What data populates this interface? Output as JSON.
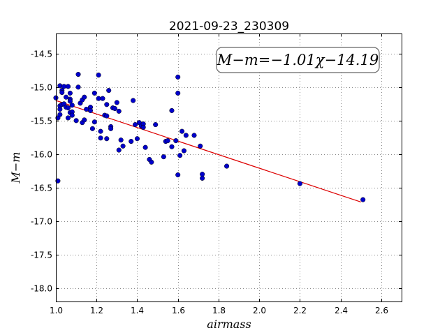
{
  "chart_data": {
    "type": "scatter",
    "title": "2021-09-23_230309",
    "xlabel": "airmass",
    "ylabel": "M−m",
    "xlim": [
      1.0,
      2.7
    ],
    "ylim": [
      -18.2,
      -14.2
    ],
    "xticks": [
      "1.0",
      "1.2",
      "1.4",
      "1.6",
      "1.8",
      "2.0",
      "2.2",
      "2.4",
      "2.6"
    ],
    "yticks": [
      "-14.5",
      "-15.0",
      "-15.5",
      "-16.0",
      "-16.5",
      "-17.0",
      "-17.5",
      "-18.0"
    ],
    "grid": true,
    "annotation": "M−m=−1.01χ−14.19",
    "point_color": "#0000cc",
    "line_color": "#dd0000",
    "fit": {
      "slope": -1.01,
      "intercept": -14.19,
      "x_range": [
        1.0,
        2.5
      ]
    },
    "points": [
      [
        1.0,
        -15.16
      ],
      [
        1.01,
        -16.4
      ],
      [
        1.01,
        -15.46
      ],
      [
        1.02,
        -14.98
      ],
      [
        1.02,
        -15.33
      ],
      [
        1.02,
        -15.28
      ],
      [
        1.02,
        -15.41
      ],
      [
        1.03,
        -15.05
      ],
      [
        1.03,
        -15.08
      ],
      [
        1.03,
        -15.26
      ],
      [
        1.04,
        -14.99
      ],
      [
        1.04,
        -15.25
      ],
      [
        1.05,
        -15.15
      ],
      [
        1.05,
        -15.3
      ],
      [
        1.06,
        -14.99
      ],
      [
        1.06,
        -15.31
      ],
      [
        1.06,
        -15.46
      ],
      [
        1.07,
        -15.09
      ],
      [
        1.07,
        -15.18
      ],
      [
        1.07,
        -15.21
      ],
      [
        1.07,
        -15.38
      ],
      [
        1.08,
        -15.27
      ],
      [
        1.08,
        -15.37
      ],
      [
        1.08,
        -15.42
      ],
      [
        1.1,
        -15.5
      ],
      [
        1.11,
        -14.81
      ],
      [
        1.11,
        -15.0
      ],
      [
        1.12,
        -15.24
      ],
      [
        1.13,
        -15.19
      ],
      [
        1.13,
        -15.53
      ],
      [
        1.14,
        -15.15
      ],
      [
        1.14,
        -15.49
      ],
      [
        1.15,
        -15.33
      ],
      [
        1.17,
        -15.3
      ],
      [
        1.17,
        -15.35
      ],
      [
        1.18,
        -15.62
      ],
      [
        1.19,
        -15.09
      ],
      [
        1.19,
        -15.52
      ],
      [
        1.21,
        -14.82
      ],
      [
        1.21,
        -15.17
      ],
      [
        1.22,
        -15.66
      ],
      [
        1.22,
        -15.76
      ],
      [
        1.23,
        -15.17
      ],
      [
        1.24,
        -15.42
      ],
      [
        1.25,
        -15.43
      ],
      [
        1.25,
        -15.26
      ],
      [
        1.25,
        -15.77
      ],
      [
        1.26,
        -15.05
      ],
      [
        1.27,
        -15.59
      ],
      [
        1.27,
        -15.62
      ],
      [
        1.28,
        -15.31
      ],
      [
        1.29,
        -15.32
      ],
      [
        1.3,
        -15.23
      ],
      [
        1.31,
        -15.36
      ],
      [
        1.31,
        -15.94
      ],
      [
        1.32,
        -15.79
      ],
      [
        1.33,
        -15.88
      ],
      [
        1.37,
        -15.81
      ],
      [
        1.38,
        -15.2
      ],
      [
        1.39,
        -15.56
      ],
      [
        1.4,
        -15.77
      ],
      [
        1.41,
        -15.53
      ],
      [
        1.42,
        -15.58
      ],
      [
        1.43,
        -15.55
      ],
      [
        1.43,
        -15.6
      ],
      [
        1.44,
        -15.9
      ],
      [
        1.46,
        -16.08
      ],
      [
        1.47,
        -16.12
      ],
      [
        1.49,
        -15.56
      ],
      [
        1.53,
        -16.04
      ],
      [
        1.54,
        -15.81
      ],
      [
        1.55,
        -15.8
      ],
      [
        1.57,
        -15.35
      ],
      [
        1.57,
        -15.89
      ],
      [
        1.59,
        -15.8
      ],
      [
        1.6,
        -14.85
      ],
      [
        1.6,
        -15.09
      ],
      [
        1.6,
        -16.31
      ],
      [
        1.61,
        -16.02
      ],
      [
        1.62,
        -15.66
      ],
      [
        1.63,
        -15.95
      ],
      [
        1.64,
        -15.72
      ],
      [
        1.68,
        -15.72
      ],
      [
        1.71,
        -15.88
      ],
      [
        1.72,
        -16.3
      ],
      [
        1.72,
        -16.36
      ],
      [
        1.84,
        -16.18
      ],
      [
        2.2,
        -16.44
      ],
      [
        2.51,
        -16.68
      ]
    ]
  }
}
